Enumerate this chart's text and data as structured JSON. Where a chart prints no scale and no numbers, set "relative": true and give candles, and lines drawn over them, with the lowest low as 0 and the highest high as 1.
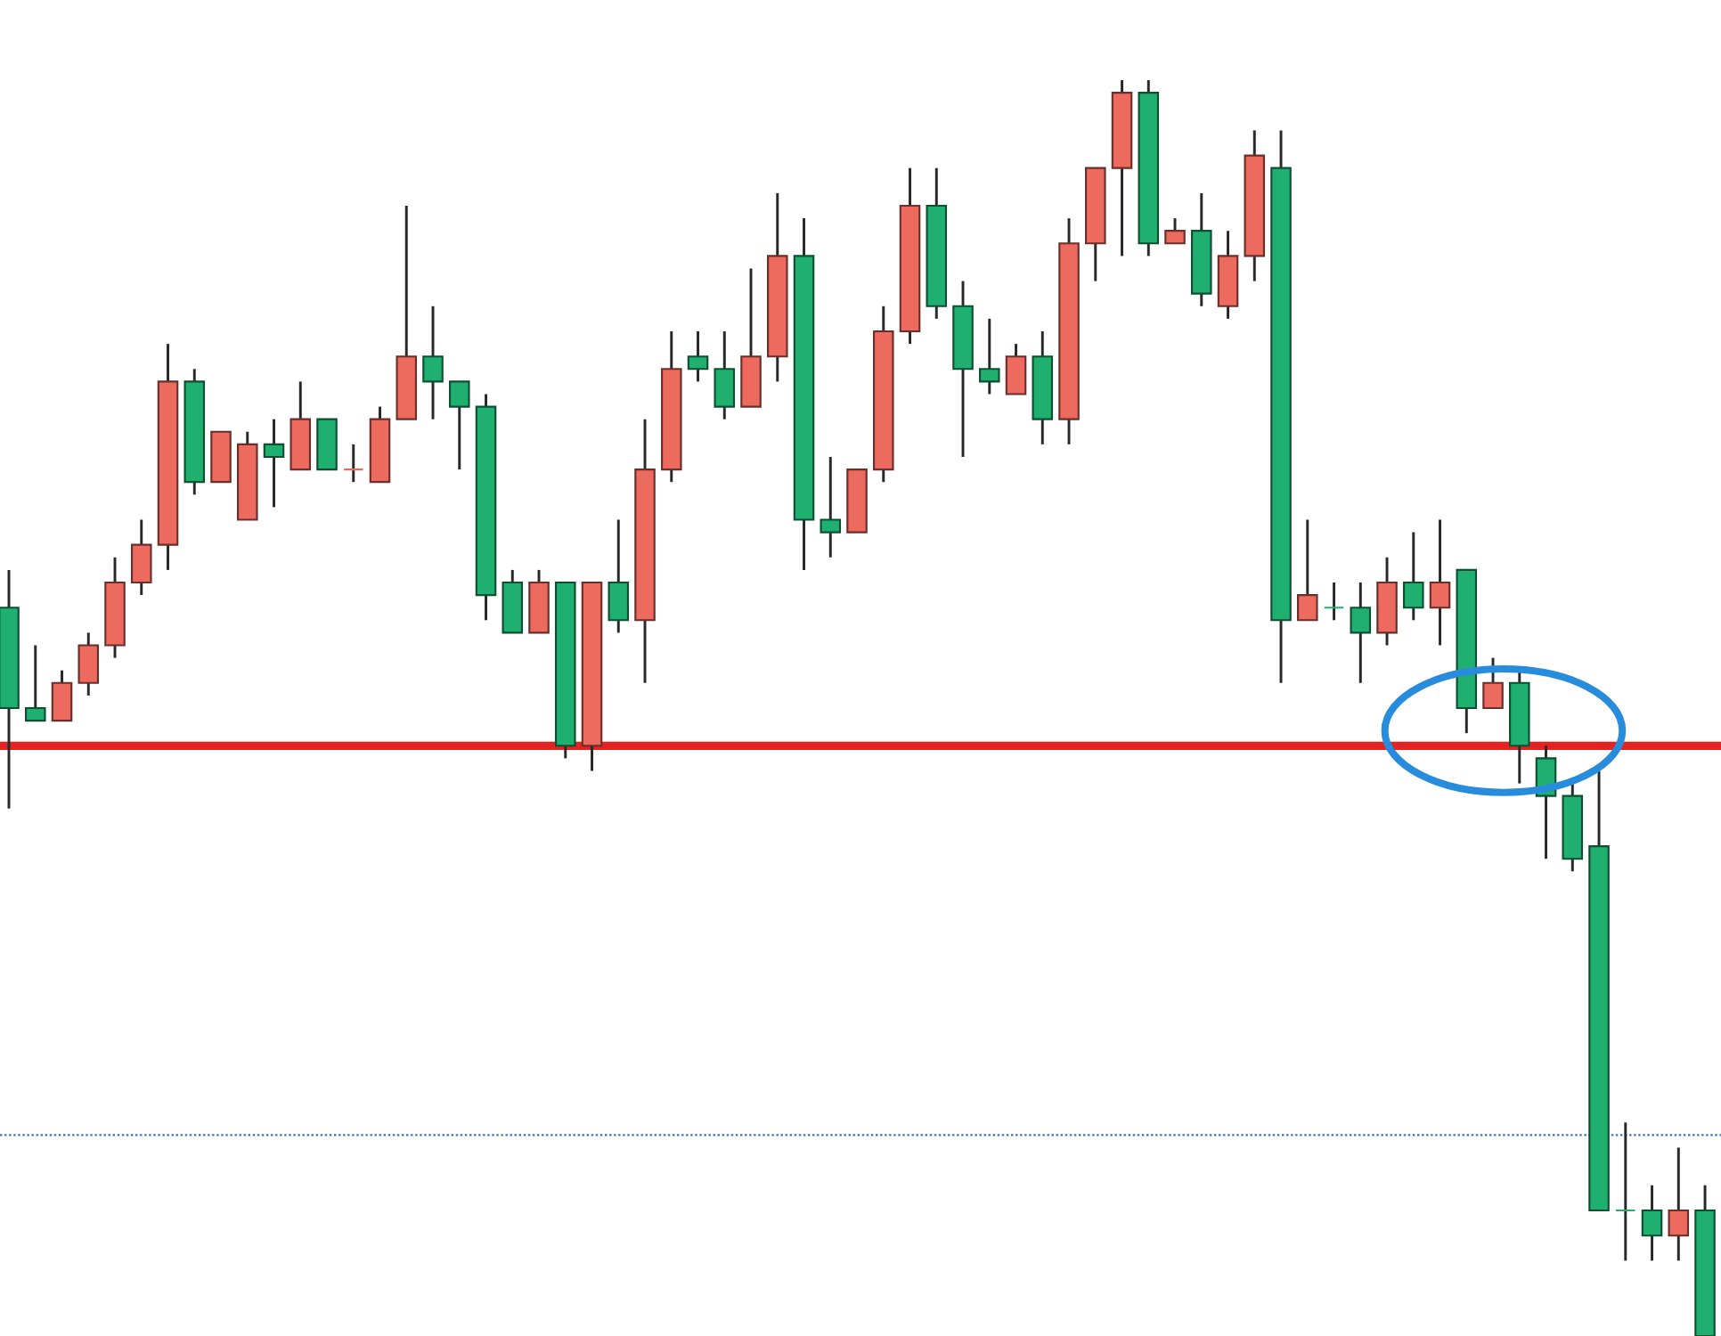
{
  "chart_data": {
    "type": "candlestick",
    "relative": true,
    "categories": [
      null,
      null,
      null,
      null,
      null,
      null,
      null,
      null,
      null,
      null,
      null,
      null,
      null,
      null,
      null,
      null,
      null,
      null,
      null,
      null,
      null,
      null,
      null,
      null,
      null,
      null,
      null,
      null,
      null,
      null,
      null,
      null,
      null,
      null,
      null,
      null,
      null,
      null,
      null,
      null,
      null,
      null,
      null,
      null,
      null,
      null,
      null,
      null,
      null,
      null,
      null,
      null,
      null,
      null,
      null,
      null,
      null,
      null,
      null,
      null,
      null,
      null,
      null,
      null,
      null
    ],
    "ohlc": [
      [
        0.58,
        0.61,
        0.42,
        0.5
      ],
      [
        0.5,
        0.55,
        0.49,
        0.49
      ],
      [
        0.49,
        0.53,
        0.49,
        0.52
      ],
      [
        0.52,
        0.56,
        0.51,
        0.55
      ],
      [
        0.55,
        0.62,
        0.54,
        0.6
      ],
      [
        0.6,
        0.65,
        0.59,
        0.63
      ],
      [
        0.63,
        0.79,
        0.61,
        0.76
      ],
      [
        0.76,
        0.77,
        0.67,
        0.68
      ],
      [
        0.68,
        0.72,
        0.68,
        0.72
      ],
      [
        0.65,
        0.72,
        0.65,
        0.71
      ],
      [
        0.71,
        0.73,
        0.66,
        0.7
      ],
      [
        0.69,
        0.76,
        0.69,
        0.73
      ],
      [
        0.73,
        0.73,
        0.69,
        0.69
      ],
      [
        0.69,
        0.71,
        0.68,
        0.69
      ],
      [
        0.68,
        0.74,
        0.68,
        0.73
      ],
      [
        0.73,
        0.9,
        0.73,
        0.78
      ],
      [
        0.78,
        0.82,
        0.73,
        0.76
      ],
      [
        0.76,
        0.76,
        0.69,
        0.74
      ],
      [
        0.74,
        0.75,
        0.57,
        0.59
      ],
      [
        0.6,
        0.61,
        0.56,
        0.56
      ],
      [
        0.56,
        0.61,
        0.56,
        0.6
      ],
      [
        0.6,
        0.6,
        0.46,
        0.47
      ],
      [
        0.47,
        0.6,
        0.45,
        0.6
      ],
      [
        0.6,
        0.65,
        0.56,
        0.57
      ],
      [
        0.57,
        0.73,
        0.52,
        0.69
      ],
      [
        0.69,
        0.8,
        0.68,
        0.77
      ],
      [
        0.78,
        0.8,
        0.76,
        0.77
      ],
      [
        0.77,
        0.8,
        0.73,
        0.74
      ],
      [
        0.74,
        0.85,
        0.74,
        0.78
      ],
      [
        0.78,
        0.91,
        0.76,
        0.86
      ],
      [
        0.86,
        0.89,
        0.61,
        0.65
      ],
      [
        0.65,
        0.7,
        0.62,
        0.64
      ],
      [
        0.64,
        0.69,
        0.64,
        0.69
      ],
      [
        0.69,
        0.82,
        0.68,
        0.8
      ],
      [
        0.8,
        0.93,
        0.79,
        0.9
      ],
      [
        0.9,
        0.93,
        0.81,
        0.82
      ],
      [
        0.82,
        0.84,
        0.7,
        0.77
      ],
      [
        0.77,
        0.81,
        0.75,
        0.76
      ],
      [
        0.75,
        0.79,
        0.75,
        0.78
      ],
      [
        0.78,
        0.8,
        0.71,
        0.73
      ],
      [
        0.73,
        0.89,
        0.71,
        0.87
      ],
      [
        0.87,
        0.93,
        0.84,
        0.93
      ],
      [
        0.93,
        1.0,
        0.86,
        0.99
      ],
      [
        0.99,
        1.0,
        0.86,
        0.87
      ],
      [
        0.87,
        0.89,
        0.87,
        0.88
      ],
      [
        0.88,
        0.91,
        0.82,
        0.83
      ],
      [
        0.82,
        0.88,
        0.81,
        0.86
      ],
      [
        0.86,
        0.96,
        0.84,
        0.94
      ],
      [
        0.93,
        0.96,
        0.52,
        0.57
      ],
      [
        0.57,
        0.65,
        0.57,
        0.59
      ],
      [
        0.58,
        0.6,
        0.57,
        0.58
      ],
      [
        0.58,
        0.6,
        0.52,
        0.56
      ],
      [
        0.56,
        0.62,
        0.55,
        0.6
      ],
      [
        0.6,
        0.64,
        0.57,
        0.58
      ],
      [
        0.58,
        0.65,
        0.55,
        0.6
      ],
      [
        0.61,
        0.61,
        0.48,
        0.5
      ],
      [
        0.5,
        0.54,
        0.5,
        0.52
      ],
      [
        0.52,
        0.53,
        0.44,
        0.47
      ],
      [
        0.46,
        0.47,
        0.38,
        0.43
      ],
      [
        0.43,
        0.44,
        0.37,
        0.38
      ],
      [
        0.39,
        0.45,
        0.1,
        0.1
      ],
      [
        0.1,
        0.17,
        0.06,
        0.1
      ],
      [
        0.1,
        0.12,
        0.06,
        0.08
      ],
      [
        0.08,
        0.15,
        0.06,
        0.1
      ],
      [
        0.1,
        0.12,
        0.0,
        0.0
      ]
    ],
    "colors": [
      "#1fb070",
      "#1fb070",
      "#ec6a5e",
      "#ec6a5e",
      "#ec6a5e",
      "#ec6a5e",
      "#ec6a5e",
      "#1fb070",
      "#ec6a5e",
      "#ec6a5e",
      "#1fb070",
      "#ec6a5e",
      "#1fb070",
      "#ec6a5e",
      "#ec6a5e",
      "#ec6a5e",
      "#1fb070",
      "#1fb070",
      "#1fb070",
      "#1fb070",
      "#ec6a5e",
      "#1fb070",
      "#ec6a5e",
      "#1fb070",
      "#ec6a5e",
      "#ec6a5e",
      "#1fb070",
      "#1fb070",
      "#ec6a5e",
      "#ec6a5e",
      "#1fb070",
      "#1fb070",
      "#ec6a5e",
      "#ec6a5e",
      "#ec6a5e",
      "#1fb070",
      "#1fb070",
      "#1fb070",
      "#ec6a5e",
      "#1fb070",
      "#ec6a5e",
      "#ec6a5e",
      "#ec6a5e",
      "#1fb070",
      "#ec6a5e",
      "#1fb070",
      "#ec6a5e",
      "#ec6a5e",
      "#1fb070",
      "#ec6a5e",
      "#1fb070",
      "#1fb070",
      "#ec6a5e",
      "#1fb070",
      "#ec6a5e",
      "#1fb070",
      "#ec6a5e",
      "#1fb070",
      "#1fb070",
      "#1fb070",
      "#1fb070",
      "#1fb070",
      "#1fb070",
      "#ec6a5e",
      "#1fb070"
    ],
    "ref_lines": [
      {
        "axis": "y",
        "value": 0.47,
        "color": "#e32222",
        "line_style": "solid"
      },
      {
        "axis": "y",
        "value": 0.16,
        "color": "#3a6fd8",
        "line_style": "dotted"
      }
    ]
  }
}
